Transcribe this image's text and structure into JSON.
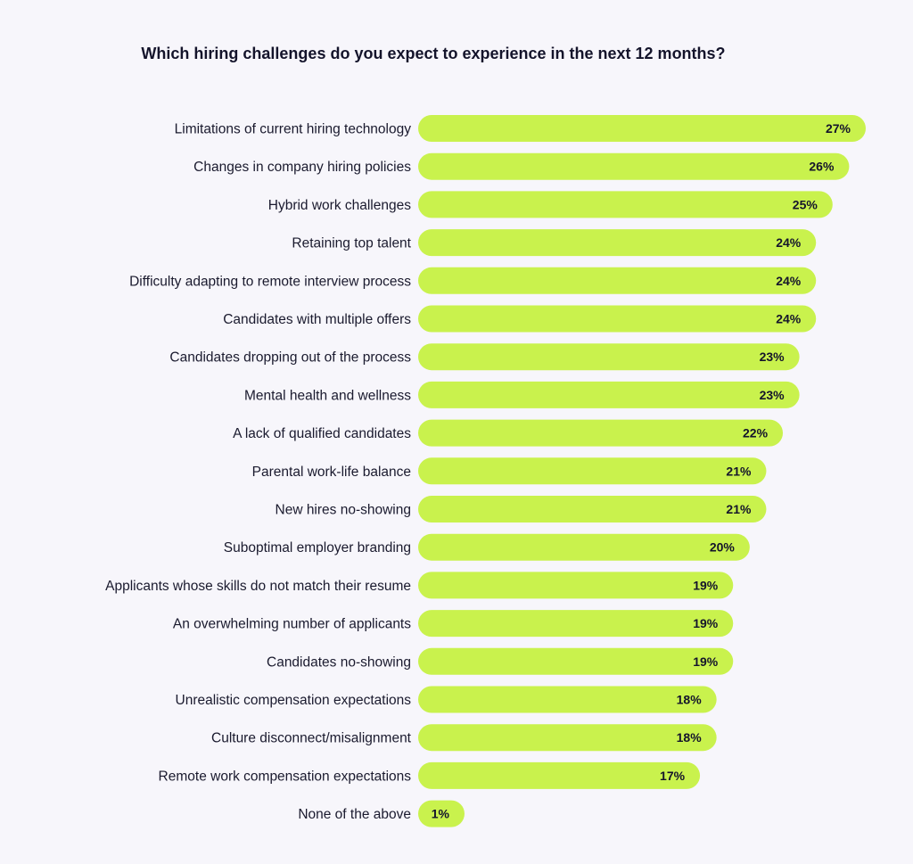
{
  "chart_data": {
    "type": "bar",
    "orientation": "horizontal",
    "title": "Which hiring challenges do you expect to experience in the next 12 months?",
    "bar_color": "#c9f24d",
    "background_color": "#f7f6fb",
    "value_suffix": "%",
    "xlim": [
      0,
      27
    ],
    "grid": false,
    "categories": [
      "Limitations of current hiring technology",
      "Changes in company hiring policies",
      "Hybrid work challenges",
      "Retaining top talent",
      "Difficulty adapting to remote interview process",
      "Candidates with multiple offers",
      "Candidates dropping out of the process",
      "Mental health and wellness",
      "A lack of qualified candidates",
      "Parental work-life balance",
      "New hires no-showing",
      "Suboptimal employer branding",
      "Applicants whose skills do not match their resume",
      "An overwhelming number of applicants",
      "Candidates no-showing",
      "Unrealistic compensation expectations",
      "Culture disconnect/misalignment",
      "Remote work compensation expectations",
      "None of the above"
    ],
    "values": [
      27,
      26,
      25,
      24,
      24,
      24,
      23,
      23,
      22,
      21,
      21,
      20,
      19,
      19,
      19,
      18,
      18,
      17,
      1
    ]
  }
}
